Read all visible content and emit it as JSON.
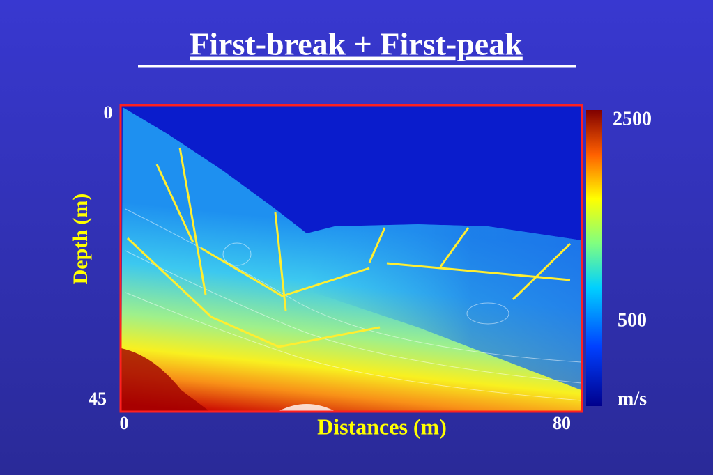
{
  "slide": {
    "title": "First-break + First-peak",
    "y_axis": {
      "label": "Depth (m)",
      "top": "0",
      "bottom": "45"
    },
    "x_axis": {
      "label": "Distances (m)",
      "left": "0",
      "right": "80"
    },
    "colorbar": {
      "max": "2500",
      "mid": "500",
      "unit": "m/s"
    }
  }
}
